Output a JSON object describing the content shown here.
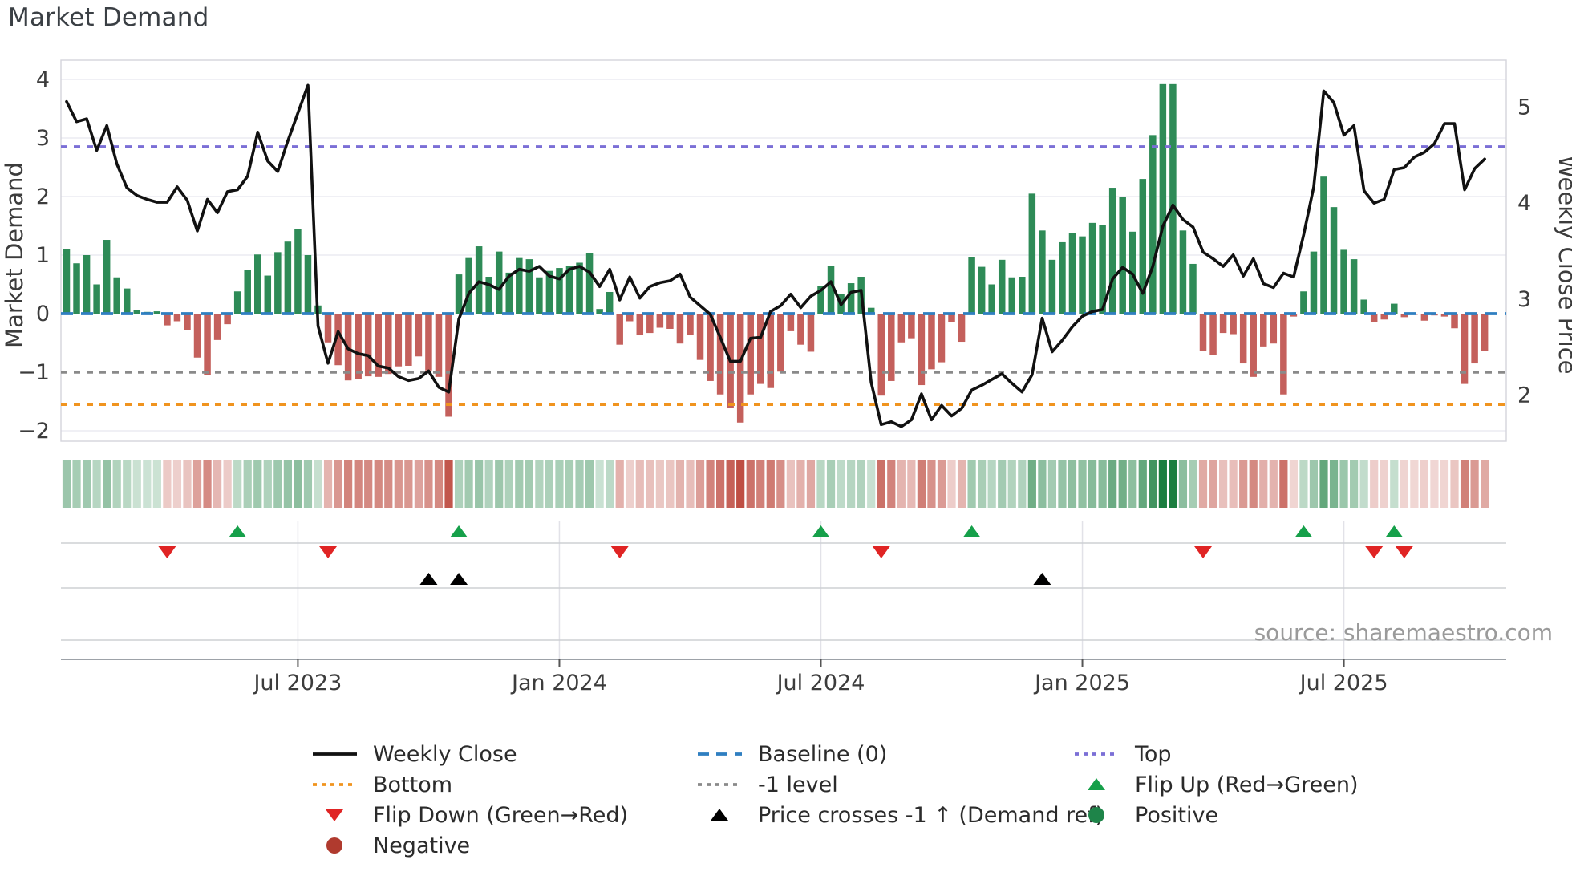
{
  "title": "Market Demand",
  "source": "source: sharemaestro.com",
  "chart_data": {
    "type": "bar",
    "subtype": "weekly demand bars + price line + heatmap strip + event markers",
    "left_axis": {
      "label": "Market Demand",
      "ticks": [
        "4",
        "3",
        "2",
        "1",
        "0",
        "−1",
        "−2"
      ],
      "tick_values": [
        4,
        3,
        2,
        1,
        0,
        -1,
        -2
      ],
      "range": [
        -2.18,
        4.33
      ]
    },
    "right_axis": {
      "label": "Weekly Close Price",
      "ticks": [
        "5",
        "4",
        "3",
        "2"
      ],
      "tick_values": [
        5,
        4,
        3,
        2
      ],
      "price3_at_demand": 0.25,
      "demand_per_price_unit": 1.637
    },
    "x_axis": {
      "tick_indices": [
        23,
        49,
        75,
        101,
        127
      ],
      "tick_labels": [
        "Jul 2023",
        "Jan 2024",
        "Jul 2024",
        "Jan 2025",
        "Jul 2025"
      ]
    },
    "reference_lines": {
      "baseline": 0,
      "top": 2.85,
      "bottom": -1.55,
      "minus1": -1
    },
    "weeks": 142,
    "demand": [
      1.1,
      0.86,
      1.0,
      0.5,
      1.26,
      0.62,
      0.43,
      0.06,
      0.03,
      0.04,
      -0.2,
      -0.13,
      -0.28,
      -0.75,
      -1.05,
      -0.45,
      -0.18,
      0.38,
      0.75,
      1.01,
      0.65,
      1.05,
      1.23,
      1.44,
      1.0,
      0.14,
      -0.49,
      -0.88,
      -1.14,
      -1.11,
      -1.07,
      -1.08,
      -1.03,
      -0.9,
      -0.89,
      -0.73,
      -0.97,
      -1.08,
      -1.76,
      0.67,
      0.95,
      1.15,
      0.63,
      1.06,
      0.7,
      0.95,
      0.93,
      0.62,
      0.73,
      0.78,
      0.82,
      0.87,
      1.03,
      0.08,
      0.37,
      -0.53,
      -0.13,
      -0.37,
      -0.33,
      -0.24,
      -0.26,
      -0.51,
      -0.37,
      -0.79,
      -1.15,
      -1.38,
      -1.61,
      -1.86,
      -1.38,
      -1.2,
      -1.27,
      -0.99,
      -0.3,
      -0.53,
      -0.65,
      0.47,
      0.81,
      0.34,
      0.52,
      0.63,
      0.1,
      -1.4,
      -1.15,
      -0.49,
      -0.42,
      -1.22,
      -0.95,
      -0.83,
      -0.15,
      -0.48,
      0.97,
      0.8,
      0.5,
      0.92,
      0.62,
      0.63,
      2.05,
      1.42,
      0.92,
      1.22,
      1.38,
      1.32,
      1.55,
      1.52,
      2.15,
      2.0,
      1.4,
      2.3,
      3.05,
      3.92,
      3.92,
      1.42,
      0.85,
      -0.63,
      -0.7,
      -0.33,
      -0.35,
      -0.85,
      -1.08,
      -0.56,
      -0.51,
      -1.38,
      -0.05,
      0.38,
      1.06,
      2.34,
      1.82,
      1.09,
      0.93,
      0.24,
      -0.15,
      -0.1,
      0.17,
      -0.06,
      -0.02,
      -0.12,
      -0.03,
      -0.05,
      -0.25,
      -1.2,
      -0.85,
      -0.63
    ],
    "close_price": [
      5.06,
      4.85,
      4.88,
      4.55,
      4.81,
      4.41,
      4.16,
      4.08,
      4.04,
      4.01,
      4.01,
      4.17,
      4.03,
      3.71,
      4.04,
      3.9,
      4.12,
      4.14,
      4.28,
      4.74,
      4.44,
      4.33,
      4.65,
      4.94,
      5.23,
      2.72,
      2.33,
      2.66,
      2.48,
      2.43,
      2.41,
      2.3,
      2.28,
      2.19,
      2.15,
      2.17,
      2.25,
      2.08,
      2.03,
      2.79,
      3.06,
      3.18,
      3.15,
      3.1,
      3.24,
      3.31,
      3.29,
      3.34,
      3.24,
      3.21,
      3.31,
      3.34,
      3.28,
      3.13,
      3.31,
      2.99,
      3.23,
      3.01,
      3.13,
      3.17,
      3.19,
      3.26,
      3.02,
      2.93,
      2.84,
      2.6,
      2.35,
      2.35,
      2.59,
      2.6,
      2.87,
      2.93,
      3.05,
      2.91,
      3.03,
      3.09,
      3.18,
      2.94,
      3.07,
      3.09,
      2.13,
      1.69,
      1.72,
      1.67,
      1.74,
      2.01,
      1.74,
      1.89,
      1.78,
      1.86,
      2.05,
      2.1,
      2.16,
      2.22,
      2.12,
      2.03,
      2.21,
      2.8,
      2.45,
      2.57,
      2.71,
      2.82,
      2.87,
      2.89,
      3.21,
      3.33,
      3.26,
      3.06,
      3.34,
      3.76,
      3.98,
      3.83,
      3.75,
      3.49,
      3.42,
      3.34,
      3.46,
      3.24,
      3.42,
      3.16,
      3.12,
      3.27,
      3.23,
      3.67,
      4.17,
      5.17,
      5.05,
      4.71,
      4.81,
      4.13,
      4.0,
      4.04,
      4.35,
      4.37,
      4.48,
      4.53,
      4.62,
      4.83,
      4.83,
      4.14,
      4.36,
      4.46
    ],
    "markers": {
      "flip_up_weeks": [
        17,
        39,
        75,
        90,
        123,
        132
      ],
      "flip_down_weeks": [
        10,
        26,
        55,
        81,
        113,
        130,
        133
      ],
      "price_cross_up_weeks": [
        36,
        39,
        97
      ]
    },
    "legend": [
      {
        "label": "Weekly Close",
        "swatch": "line",
        "color": "#111111"
      },
      {
        "label": "Baseline (0)",
        "swatch": "dashed-line",
        "color": "#2f7fc1"
      },
      {
        "label": "Top",
        "swatch": "dotted-line",
        "color": "#7b6fd6"
      },
      {
        "label": "Bottom",
        "swatch": "dotted-line",
        "color": "#f0941f"
      },
      {
        "label": "-1 level",
        "swatch": "dotted-line",
        "color": "#8a8a8a"
      },
      {
        "label": "Flip Up (Red→Green)",
        "swatch": "triangle-up",
        "color": "#16a04a"
      },
      {
        "label": "Flip Down (Green→Red)",
        "swatch": "triangle-down",
        "color": "#e02424"
      },
      {
        "label": "Price crosses -1 ↑ (Demand ref)",
        "swatch": "triangle-up",
        "color": "#000000"
      },
      {
        "label": "Positive",
        "swatch": "circle",
        "color": "#1e8449"
      },
      {
        "label": "Negative",
        "swatch": "circle",
        "color": "#b03a2e"
      }
    ],
    "colors": {
      "bar_positive": "#2e8b57",
      "bar_negative": "#c4605c",
      "price_line": "#111111",
      "baseline": "#2f7fc1",
      "top_line": "#7b6fd6",
      "bottom_line": "#f0941f",
      "minus1_line": "#8a8a8a",
      "flip_up": "#16a04a",
      "flip_down": "#e02424",
      "price_cross": "#000000",
      "heat_green": "#1b7e3f",
      "heat_red": "#bf4f44",
      "grid": "#ececf2",
      "tick_text": "#3c3c3c"
    }
  }
}
